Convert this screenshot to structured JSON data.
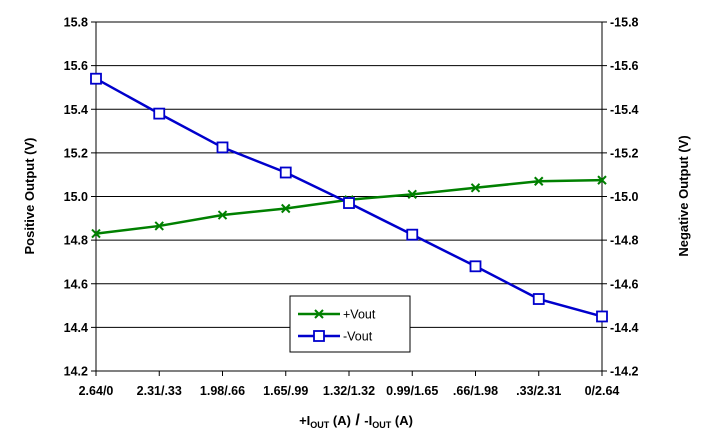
{
  "chart_data": {
    "type": "line",
    "categories": [
      "2.64/0",
      "2.31/.33",
      "1.98/.66",
      "1.65/.99",
      "1.32/1.32",
      "0.99/1.65",
      ".66/1.98",
      ".33/2.31",
      "0/2.64"
    ],
    "category_tick_labels": [
      "2.64/0",
      "2.31/.33",
      "1.98/.66",
      "1.65/.99",
      "1.32/1.32",
      "0.99/1.65",
      ".66/1.98",
      ".33/2.31",
      "0/2.64"
    ],
    "xlabel": {
      "part1_main": "+I",
      "part1_sub": "OUT",
      "part1_unit": " (A)",
      "separator": " / ",
      "part2_main": "-I",
      "part2_sub": "OUT",
      "part2_unit": " (A)"
    },
    "ylabel_left": "Positive Output (V)",
    "ylabel_right": "Negative Output (V)",
    "ylim_left": [
      14.2,
      15.8
    ],
    "ylim_right": [
      -14.2,
      -15.8
    ],
    "yticks_left": [
      "14.2",
      "14.4",
      "14.6",
      "14.8",
      "15.0",
      "15.2",
      "15.4",
      "15.6",
      "15.8"
    ],
    "yticks_right": [
      "-14.2",
      "-14.4",
      "-14.6",
      "-14.8",
      "-15.0",
      "-15.2",
      "-15.4",
      "-15.6",
      "-15.8"
    ],
    "grid": "horizontal",
    "legend_position": "bottom-center",
    "series": [
      {
        "name": "+Vout",
        "axis": "left",
        "color": "#008000",
        "marker": "x",
        "values": [
          14.83,
          14.865,
          14.915,
          14.945,
          14.985,
          15.01,
          15.04,
          15.07,
          15.075
        ]
      },
      {
        "name": "-Vout",
        "axis": "right",
        "color": "#0000cc",
        "marker": "square",
        "values": [
          -15.54,
          -15.38,
          -15.225,
          -15.11,
          -14.97,
          -14.825,
          -14.68,
          -14.53,
          -14.45
        ]
      }
    ]
  }
}
